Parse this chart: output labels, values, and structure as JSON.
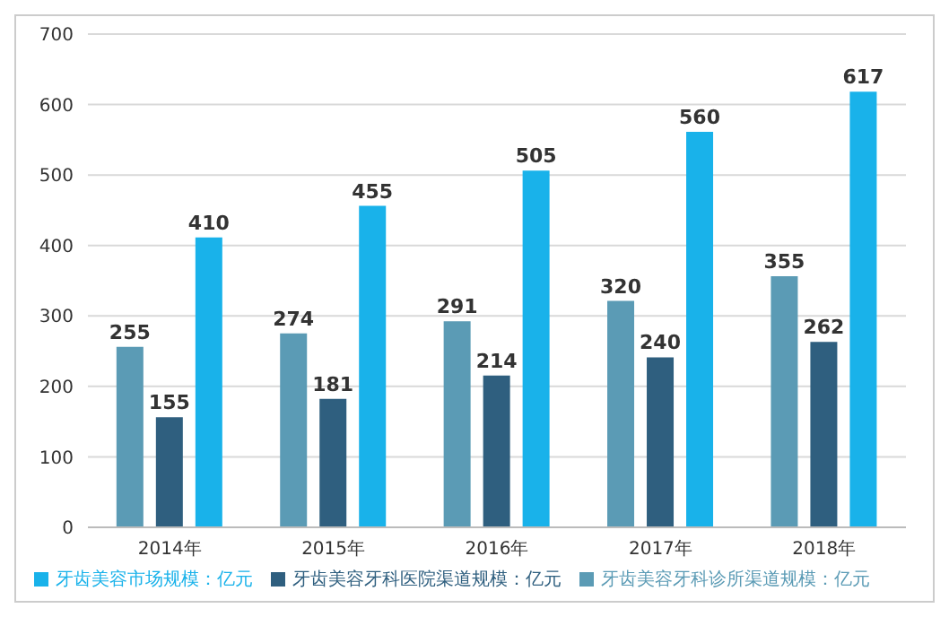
{
  "chart_data": {
    "type": "bar",
    "categories": [
      "2014年",
      "2015年",
      "2016年",
      "2017年",
      "2018年"
    ],
    "series": [
      {
        "name": "牙齿美容牙科诊所渠道规模：亿元",
        "color": "#5b9bb5",
        "values": [
          255,
          274,
          291,
          320,
          355
        ]
      },
      {
        "name": "牙齿美容牙科医院渠道规模：亿元",
        "color": "#2f5f7f",
        "values": [
          155,
          181,
          214,
          240,
          262
        ]
      },
      {
        "name": "牙齿美容市场规模：亿元",
        "color": "#19b2ea",
        "values": [
          410,
          455,
          505,
          560,
          617
        ]
      }
    ],
    "ylim": [
      0,
      700
    ],
    "yticks": [
      0,
      100,
      200,
      300,
      400,
      500,
      600,
      700
    ],
    "grid": "y",
    "legend": "bottom",
    "data_labels": true
  }
}
